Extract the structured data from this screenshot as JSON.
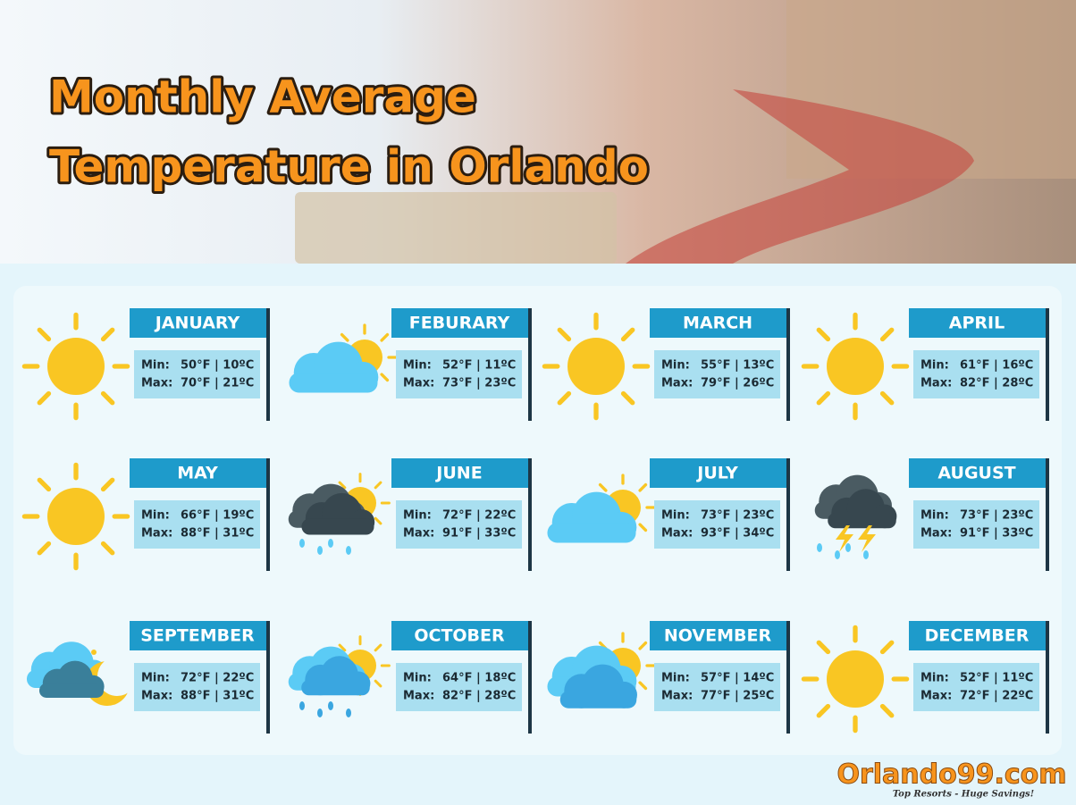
{
  "header": {
    "title": [
      "Monthly Average",
      "Temperature in Orlando"
    ]
  },
  "labels": {
    "min": "Min:",
    "max": "Max:"
  },
  "months": [
    {
      "name": "JANUARY",
      "min": "50°F | 10ºC",
      "max": "70°F | 21ºC"
    },
    {
      "name": "FEBURARY",
      "min": "52°F | 11ºC",
      "max": "73°F | 23ºC"
    },
    {
      "name": "MARCH",
      "min": "55°F | 13ºC",
      "max": "79°F | 26ºC"
    },
    {
      "name": "APRIL",
      "min": "61°F | 16ºC",
      "max": "82°F | 28ºC"
    },
    {
      "name": "MAY",
      "min": "66°F | 19ºC",
      "max": "88°F | 31ºC"
    },
    {
      "name": "JUNE",
      "min": "72°F | 22ºC",
      "max": "91°F | 33ºC"
    },
    {
      "name": "JULY",
      "min": "73°F | 23ºC",
      "max": "93°F | 34ºC"
    },
    {
      "name": "AUGUST",
      "min": "73°F | 23ºC",
      "max": "91°F | 33ºC"
    },
    {
      "name": "SEPTEMBER",
      "min": "72°F | 22ºC",
      "max": "88°F | 31ºC"
    },
    {
      "name": "OCTOBER",
      "min": "64°F | 18ºC",
      "max": "82°F | 28ºC"
    },
    {
      "name": "NOVEMBER",
      "min": "57°F | 14ºC",
      "max": "77°F | 25ºC"
    },
    {
      "name": "DECEMBER",
      "min": "52°F | 11ºC",
      "max": "72°F | 22ºC"
    }
  ],
  "logo": {
    "name": "Orlando99.com",
    "tagline": "Top Resorts - Huge Savings!"
  }
}
